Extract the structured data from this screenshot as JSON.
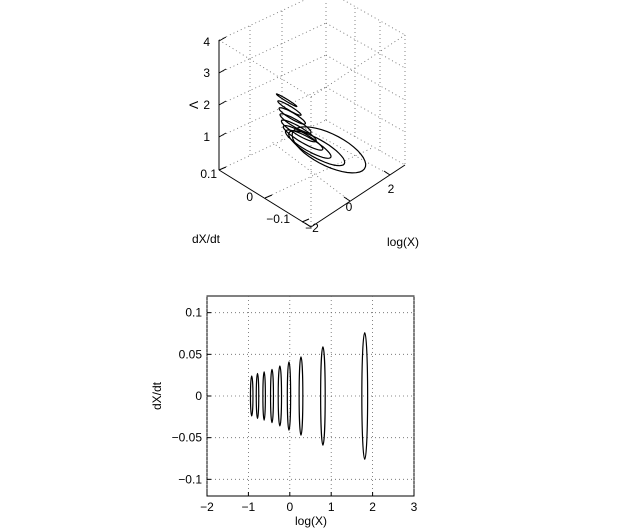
{
  "chart_data": [
    {
      "type": "line3d",
      "xlabel": "log(X)",
      "ylabel": "dX/dt",
      "zlabel": "Λ",
      "xlim": [
        -2,
        3
      ],
      "ylim": [
        -0.1,
        0.1
      ],
      "zlim": [
        1,
        4
      ],
      "xticks": [
        "−2",
        "0",
        "2"
      ],
      "yticks": [
        "0.1",
        "0",
        "−0.1"
      ],
      "zticks": [
        "1",
        "2",
        "3",
        "4"
      ],
      "grid": true,
      "series": [
        {
          "z": 3.6,
          "x_min": -0.9,
          "x_max": -0.8,
          "y_amp": 0.022
        },
        {
          "z": 3.3,
          "x_min": -0.8,
          "x_max": -0.6,
          "y_amp": 0.025
        },
        {
          "z": 3.0,
          "x_min": -0.7,
          "x_max": -0.4,
          "y_amp": 0.028
        },
        {
          "z": 2.7,
          "x_min": -0.55,
          "x_max": -0.2,
          "y_amp": 0.033
        },
        {
          "z": 2.4,
          "x_min": -0.4,
          "x_max": 0.0,
          "y_amp": 0.037
        },
        {
          "z": 2.1,
          "x_min": -0.2,
          "x_max": 0.25,
          "y_amp": 0.042
        },
        {
          "z": 1.8,
          "x_min": 0.0,
          "x_max": 0.6,
          "y_amp": 0.048
        },
        {
          "z": 1.5,
          "x_min": 0.3,
          "x_max": 1.2,
          "y_amp": 0.058
        },
        {
          "z": 1.2,
          "x_min": 0.6,
          "x_max": 2.2,
          "y_amp": 0.073
        }
      ]
    },
    {
      "type": "line",
      "xlabel": "log(X)",
      "ylabel": "dX/dt",
      "xlim": [
        -2,
        3
      ],
      "ylim": [
        -0.12,
        0.12
      ],
      "xticks": [
        "−2",
        "−1",
        "0",
        "1",
        "2",
        "3"
      ],
      "yticks": [
        "0.1",
        "0.05",
        "0",
        "−0.05",
        "−0.1"
      ],
      "grid": true,
      "series": [
        {
          "x_center": -0.92,
          "half_width": 0.03,
          "y_amp": 0.024
        },
        {
          "x_center": -0.78,
          "half_width": 0.03,
          "y_amp": 0.027
        },
        {
          "x_center": -0.62,
          "half_width": 0.03,
          "y_amp": 0.029
        },
        {
          "x_center": -0.43,
          "half_width": 0.035,
          "y_amp": 0.032
        },
        {
          "x_center": -0.24,
          "half_width": 0.04,
          "y_amp": 0.036
        },
        {
          "x_center": -0.02,
          "half_width": 0.04,
          "y_amp": 0.041
        },
        {
          "x_center": 0.27,
          "half_width": 0.045,
          "y_amp": 0.047
        },
        {
          "x_center": 0.8,
          "half_width": 0.055,
          "y_amp": 0.059
        },
        {
          "x_center": 1.81,
          "half_width": 0.07,
          "y_amp": 0.076
        }
      ]
    }
  ]
}
